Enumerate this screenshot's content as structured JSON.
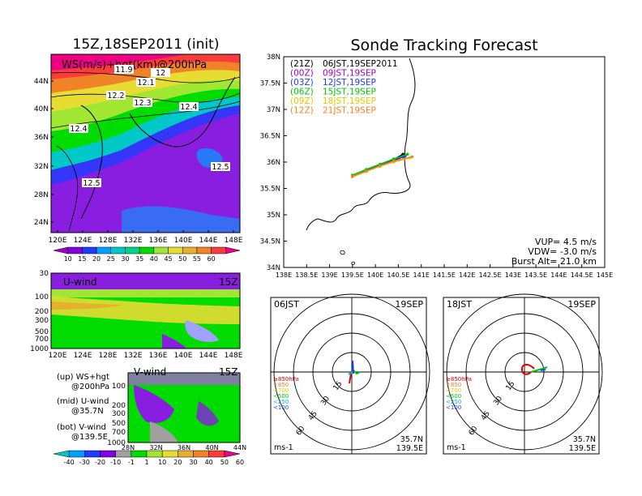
{
  "header": {
    "left_title": "15Z,18SEP2011 (init)",
    "right_title": "Sonde Tracking Forecast"
  },
  "top_map": {
    "field_label": "WS(m/s)+hgt(km)@200hPa",
    "lat_ticks": [
      "44N",
      "40N",
      "36N",
      "32N",
      "28N",
      "24N"
    ],
    "lon_ticks": [
      "120E",
      "124E",
      "128E",
      "132E",
      "136E",
      "140E",
      "144E",
      "148E"
    ],
    "height_labels": [
      "11.9",
      "12",
      "12.1",
      "12.2",
      "12.3",
      "12.4",
      "12.4",
      "12.5",
      "12.5"
    ]
  },
  "ws_colorbar": {
    "labels": [
      "10",
      "15",
      "20",
      "25",
      "30",
      "35",
      "40",
      "45",
      "50",
      "55",
      "60"
    ],
    "colors": [
      "#a000c8",
      "#8200dc",
      "#1e3cff",
      "#00a0ff",
      "#00c8c8",
      "#00d28c",
      "#00dc00",
      "#a0e632",
      "#e6dc32",
      "#e6af2d",
      "#f08228",
      "#fa3c3c",
      "#f00082"
    ]
  },
  "u_panel": {
    "label": "U-wind",
    "time": "15Z",
    "y_ticks": [
      "30",
      "100",
      "200",
      "300",
      "500",
      "700",
      "1000"
    ],
    "x_ticks": [
      "120E",
      "124E",
      "128E",
      "132E",
      "136E",
      "140E",
      "144E",
      "148E"
    ]
  },
  "v_panel": {
    "label": "V-wind",
    "time": "15Z",
    "y_ticks": [
      "100",
      "200",
      "300",
      "500",
      "700",
      "1000"
    ],
    "x_ticks": [
      "28N",
      "32N",
      "36N",
      "40N",
      "44N"
    ]
  },
  "legend_notes": [
    {
      "line1": "(up) WS+hgt",
      "line2": "@200hPa"
    },
    {
      "line1": "(mid) U-wind",
      "line2": "@35.7N"
    },
    {
      "line1": "(bot) V-wind",
      "line2": "@139.5E"
    }
  ],
  "wind_colorbar": {
    "labels": [
      "-40",
      "-30",
      "-20",
      "-10",
      "-1",
      "1",
      "10",
      "20",
      "30",
      "40",
      "50",
      "60"
    ],
    "colors": [
      "#00c8c8",
      "#00a0ff",
      "#1e3cff",
      "#8200dc",
      "#a0a0a0",
      "#00dc00",
      "#a0e632",
      "#e6dc32",
      "#e6af2d",
      "#f08228",
      "#fa3c3c",
      "#f00082"
    ]
  },
  "track_map": {
    "lat_ticks": [
      "38N",
      "37.5N",
      "37N",
      "36.5N",
      "36N",
      "35.5N",
      "35N",
      "34.5N",
      "34N"
    ],
    "lon_ticks": [
      "138E",
      "138.5E",
      "139E",
      "139.5E",
      "140E",
      "140.5E",
      "141E",
      "141.5E",
      "142E",
      "142.5E",
      "143E",
      "143.5E",
      "144E",
      "144.5E",
      "145E"
    ],
    "forecasts": [
      {
        "code": "(21Z)",
        "time": "06JST,19SEP2011",
        "color": "#000000"
      },
      {
        "code": "(00Z)",
        "time": "09JST,19SEP",
        "color": "#a000c8"
      },
      {
        "code": "(03Z)",
        "time": "12JST,19SEP",
        "color": "#1e3cff"
      },
      {
        "code": "(06Z)",
        "time": "15JST,19SEP",
        "color": "#00c800"
      },
      {
        "code": "(09Z)",
        "time": "18JST,19SEP",
        "color": "#e6c800"
      },
      {
        "code": "(12Z)",
        "time": "21JST,19SEP",
        "color": "#f08228"
      }
    ],
    "vup": "VUP= 4.5 m/s",
    "vdw": "VDW= -3.0 m/s",
    "burst": "Burst Alt= 21.0 km"
  },
  "hodograph_06": {
    "time": "06JST",
    "date": "19SEP",
    "ring_labels": [
      "15",
      "30",
      "45",
      "60"
    ],
    "unit": "ms-1",
    "lat": "35.7N",
    "lon": "139.5E",
    "levels": [
      {
        "label": "≥850hPa",
        "color": "#e60000"
      },
      {
        "label": "<850",
        "color": "#f08228"
      },
      {
        "label": "<700",
        "color": "#e6c800"
      },
      {
        "label": "<500",
        "color": "#00c800"
      },
      {
        "label": "<250",
        "color": "#00b4dc"
      },
      {
        "label": "<100",
        "color": "#1e3cff"
      }
    ]
  },
  "hodograph_18": {
    "time": "18JST",
    "date": "19SEP",
    "ring_labels": [
      "15",
      "30",
      "45",
      "60"
    ],
    "unit": "ms-1",
    "lat": "35.7N",
    "lon": "139.5E",
    "levels": [
      {
        "label": "≥850hPa",
        "color": "#e60000"
      },
      {
        "label": "<850",
        "color": "#f08228"
      },
      {
        "label": "<700",
        "color": "#e6c800"
      },
      {
        "label": "<500",
        "color": "#00c800"
      },
      {
        "label": "<250",
        "color": "#00b4dc"
      },
      {
        "label": "<100",
        "color": "#1e3cff"
      }
    ]
  },
  "chart_data": [
    {
      "type": "heatmap",
      "title": "15Z,18SEP2011 (init)",
      "variable": "WS(m/s)+hgt(km)@200hPa",
      "xlim": [
        120,
        150
      ],
      "ylim": [
        22,
        48
      ],
      "colorbar_levels": [
        10,
        15,
        20,
        25,
        30,
        35,
        40,
        45,
        50,
        55,
        60
      ],
      "height_contours_km": [
        11.9,
        12,
        12.1,
        12.2,
        12.3,
        12.4,
        12.5
      ]
    },
    {
      "type": "heatmap",
      "variable": "U-wind @35.7N",
      "xlim": [
        120,
        150
      ],
      "ylim_hPa": [
        1000,
        30
      ],
      "colorbar_levels": [
        -40,
        -30,
        -20,
        -10,
        -1,
        1,
        10,
        20,
        30,
        40,
        50,
        60
      ]
    },
    {
      "type": "heatmap",
      "variable": "V-wind @139.5E",
      "xlim": [
        28,
        44
      ],
      "ylim_hPa": [
        1000,
        100
      ],
      "colorbar_levels": [
        -40,
        -30,
        -20,
        -10,
        -1,
        1,
        10,
        20,
        30,
        40,
        50,
        60
      ]
    },
    {
      "type": "line",
      "title": "Sonde Tracking Forecast",
      "xlim": [
        138,
        145
      ],
      "ylim": [
        34,
        38
      ],
      "series": [
        {
          "name": "(21Z) 06JST,19SEP2011",
          "x": [
            139.5,
            139.8,
            140.1,
            140.4,
            140.6
          ],
          "y": [
            35.75,
            35.85,
            35.95,
            36.05,
            36.15
          ]
        },
        {
          "name": "(00Z) 09JST,19SEP",
          "x": [
            139.5,
            139.8,
            140.1,
            140.4,
            140.6
          ],
          "y": [
            35.73,
            35.83,
            35.93,
            36.02,
            36.1
          ]
        },
        {
          "name": "(03Z) 12JST,19SEP",
          "x": [
            139.5,
            139.8,
            140.1,
            140.4,
            140.65
          ],
          "y": [
            35.74,
            35.84,
            35.94,
            36.04,
            36.12
          ]
        },
        {
          "name": "(06Z) 15JST,19SEP",
          "x": [
            139.5,
            139.8,
            140.1,
            140.4,
            140.7
          ],
          "y": [
            35.75,
            35.86,
            35.96,
            36.06,
            36.15
          ]
        },
        {
          "name": "(09Z) 18JST,19SEP",
          "x": [
            139.5,
            139.8,
            140.1,
            140.4,
            140.75
          ],
          "y": [
            35.72,
            35.82,
            35.92,
            36.0,
            36.08
          ]
        },
        {
          "name": "(12Z) 21JST,19SEP",
          "x": [
            139.5,
            139.8,
            140.1,
            140.4,
            140.8
          ],
          "y": [
            35.73,
            35.83,
            35.93,
            36.02,
            36.1
          ]
        }
      ]
    }
  ]
}
